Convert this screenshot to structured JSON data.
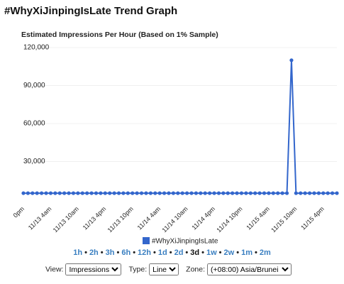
{
  "page_title": "#WhyXiJinpingIsLate Trend Graph",
  "chart_data": {
    "type": "line",
    "title": "Estimated Impressions Per Hour (Based on 1% Sample)",
    "categories": [
      "0pm",
      null,
      null,
      null,
      null,
      null,
      "11/13 4am",
      null,
      null,
      null,
      null,
      null,
      "11/13 10am",
      null,
      null,
      null,
      null,
      null,
      "11/13 4pm",
      null,
      null,
      null,
      null,
      null,
      "11/13 10pm",
      null,
      null,
      null,
      null,
      null,
      "11/14 4am",
      null,
      null,
      null,
      null,
      null,
      "11/14 10am",
      null,
      null,
      null,
      null,
      null,
      "11/14 4pm",
      null,
      null,
      null,
      null,
      null,
      "11/14 10pm",
      null,
      null,
      null,
      null,
      null,
      "11/15 4am",
      null,
      null,
      null,
      null,
      null,
      "11/15 10am",
      null,
      null,
      null,
      null,
      null,
      "11/15 4pm",
      null,
      null,
      null
    ],
    "series": [
      {
        "name": "#WhyXiJinpingIsLate",
        "color": "#3366cc",
        "values": [
          5000,
          5000,
          5000,
          5000,
          5000,
          5000,
          5000,
          5000,
          5000,
          5000,
          5000,
          5000,
          5000,
          5000,
          5000,
          5000,
          5000,
          5000,
          5000,
          5000,
          5000,
          5000,
          5000,
          5000,
          5000,
          5000,
          5000,
          5000,
          5000,
          5000,
          5000,
          5000,
          5000,
          5000,
          5000,
          5000,
          5000,
          5000,
          5000,
          5000,
          5000,
          5000,
          5000,
          5000,
          5000,
          5000,
          5000,
          5000,
          5000,
          5000,
          5000,
          5000,
          5000,
          5000,
          5000,
          5000,
          5000,
          5000,
          5000,
          110000,
          5000,
          5000,
          5000,
          5000,
          5000,
          5000,
          5000,
          5000,
          5000,
          5000
        ]
      }
    ],
    "ylim": [
      0,
      120000
    ],
    "yticks": [
      {
        "value": 30000,
        "label": "30,000"
      },
      {
        "value": 60000,
        "label": "60,000"
      },
      {
        "value": 90000,
        "label": "90,000"
      },
      {
        "value": 120000,
        "label": "120,000"
      }
    ],
    "grid": true
  },
  "ranges": {
    "separator": "•",
    "items": [
      "1h",
      "2h",
      "3h",
      "6h",
      "12h",
      "1d",
      "2d",
      "3d",
      "1w",
      "2w",
      "1m",
      "2m"
    ],
    "selected": "3d"
  },
  "controls": [
    {
      "label": "View:",
      "value": "Impressions"
    },
    {
      "label": "Type:",
      "value": "Line"
    },
    {
      "label": "Zone:",
      "value": "(+08:00) Asia/Brunei"
    }
  ]
}
